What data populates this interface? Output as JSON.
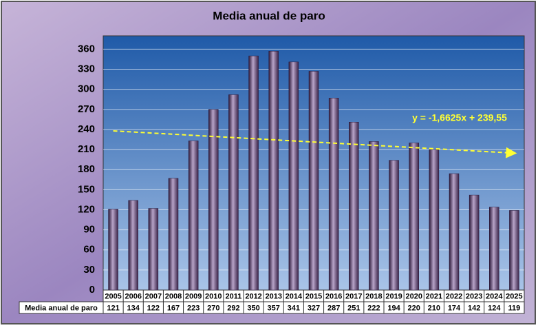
{
  "chart_data": {
    "type": "bar",
    "title": "Media anual de paro",
    "categories": [
      "2005",
      "2006",
      "2007",
      "2008",
      "2009",
      "2010",
      "2011",
      "2012",
      "2013",
      "2014",
      "2015",
      "2016",
      "2017",
      "2018",
      "2019",
      "2020",
      "2021",
      "2022",
      "2023",
      "2024",
      "2025"
    ],
    "series": [
      {
        "name": "Media anual de paro",
        "color": "#4a2f5c",
        "values": [
          121,
          134,
          122,
          167,
          223,
          270,
          292,
          350,
          357,
          341,
          327,
          287,
          251,
          222,
          194,
          220,
          210,
          174,
          142,
          124,
          119
        ]
      }
    ],
    "ylim": [
      0,
      380
    ],
    "yticks": [
      0,
      30,
      60,
      90,
      120,
      150,
      180,
      210,
      240,
      270,
      300,
      330,
      360
    ],
    "grid": true,
    "trendline": {
      "slope": -1.6625,
      "intercept": 239.55,
      "label": "y = -1,6625x + 239,55",
      "color": "#ffff33"
    }
  }
}
